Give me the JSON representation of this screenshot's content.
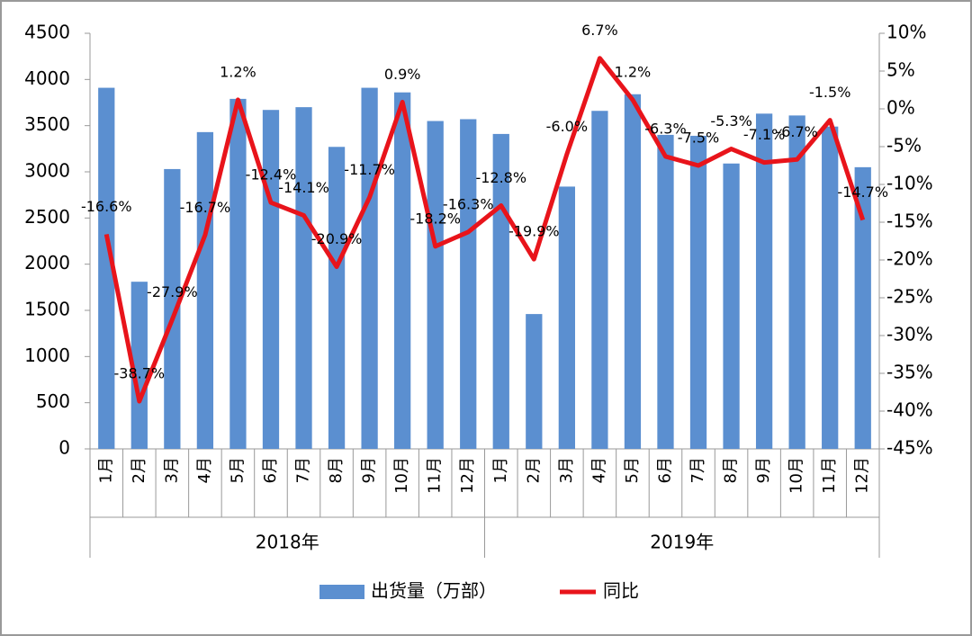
{
  "chart_data": {
    "type": "bar-line",
    "categories": [
      "1月",
      "2月",
      "3月",
      "4月",
      "5月",
      "6月",
      "7月",
      "8月",
      "9月",
      "10月",
      "11月",
      "12月",
      "1月",
      "2月",
      "3月",
      "4月",
      "5月",
      "6月",
      "7月",
      "8月",
      "9月",
      "10月",
      "11月",
      "12月"
    ],
    "groups": [
      "2018年",
      "2019年"
    ],
    "series": [
      {
        "name": "出货量（万部）",
        "type": "bar",
        "color": "#5b8fd0",
        "values": [
          3910,
          1810,
          3030,
          3430,
          3790,
          3670,
          3700,
          3270,
          3910,
          3860,
          3550,
          3570,
          3410,
          1460,
          2840,
          3660,
          3840,
          3400,
          3390,
          3090,
          3630,
          3610,
          3490,
          3050
        ]
      },
      {
        "name": "同比",
        "type": "line",
        "color": "#e8141b",
        "axis": "y2",
        "values": [
          -16.6,
          -38.7,
          -27.9,
          -16.7,
          1.2,
          -12.4,
          -14.1,
          -20.9,
          -11.7,
          0.9,
          -18.2,
          -16.3,
          -12.8,
          -19.9,
          -6.0,
          6.7,
          1.2,
          -6.3,
          -7.5,
          -5.3,
          -7.1,
          -6.7,
          -1.5,
          -14.7
        ],
        "value_labels": [
          "-16.6%",
          "-38.7%",
          "-27.9%",
          "-16.7%",
          "1.2%",
          "-12.4%",
          "-14.1%",
          "-20.9%",
          "-11.7%",
          "0.9%",
          "-18.2%",
          "-16.3%",
          "-12.8%",
          "-19.9%",
          "-6.0%",
          "6.7%",
          "1.2%",
          "-6.3%",
          "-7.5%",
          "-5.3%",
          "-7.1%",
          "-6.7%",
          "-1.5%",
          "-14.7%"
        ]
      }
    ],
    "ylim": [
      0,
      4500
    ],
    "yticks": [
      0,
      500,
      1000,
      1500,
      2000,
      2500,
      3000,
      3500,
      4000,
      4500
    ],
    "y2lim": [
      -45,
      10
    ],
    "y2ticks": [
      {
        "value": -45,
        "label": "-45%"
      },
      {
        "value": -40,
        "label": "-40%"
      },
      {
        "value": -35,
        "label": "-35%"
      },
      {
        "value": -30,
        "label": "-30%"
      },
      {
        "value": -25,
        "label": "-25%"
      },
      {
        "value": -20,
        "label": "-20%"
      },
      {
        "value": -15,
        "label": "-15%"
      },
      {
        "value": -10,
        "label": "-10%"
      },
      {
        "value": -5,
        "label": "-5%"
      },
      {
        "value": 0,
        "label": "0%"
      },
      {
        "value": 5,
        "label": "5%"
      },
      {
        "value": 10,
        "label": "10%"
      }
    ],
    "legend": "bottom"
  }
}
